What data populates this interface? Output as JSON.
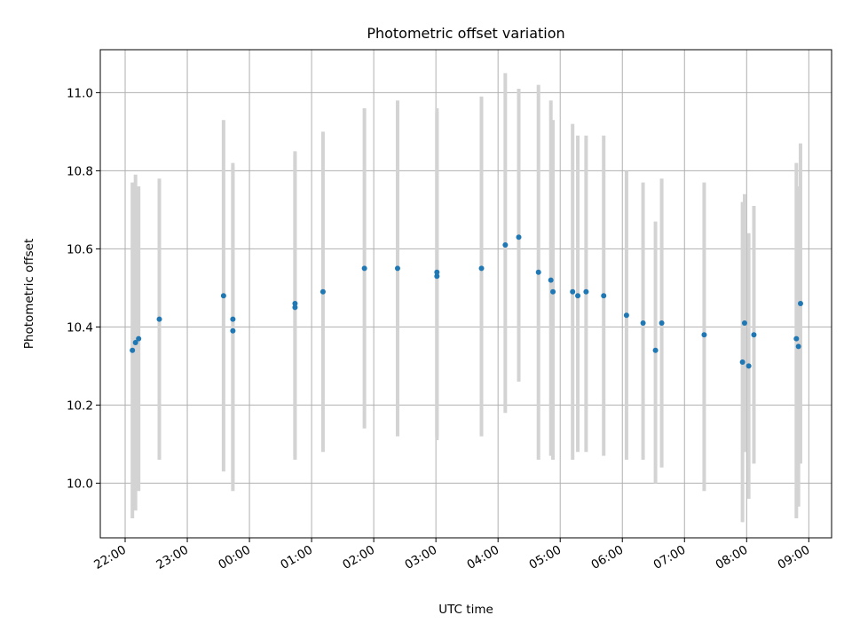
{
  "chart_data": {
    "type": "scatter",
    "title": "Photometric offset variation",
    "xlabel": "UTC time",
    "ylabel": "Photometric offset",
    "x_start_date": "2000-01-01",
    "xlim": [
      "2000-01-01 21:36",
      "2000-01-02 09:22"
    ],
    "ylim": [
      9.86,
      11.11
    ],
    "xticks": [
      "22:00",
      "23:00",
      "00:00",
      "01:00",
      "02:00",
      "03:00",
      "04:00",
      "05:00",
      "06:00",
      "07:00",
      "08:00",
      "09:00"
    ],
    "yticks": [
      "10.0",
      "10.2",
      "10.4",
      "10.6",
      "10.8",
      "11.0"
    ],
    "grid": true,
    "colors": {
      "points": "#1f77b4",
      "errorbars": "#d3d3d3",
      "grid": "#b0b0b0"
    },
    "points": [
      {
        "t": "22:07",
        "y": 10.34,
        "lo": 9.91,
        "hi": 10.77
      },
      {
        "t": "22:10",
        "y": 10.36,
        "lo": 9.93,
        "hi": 10.79
      },
      {
        "t": "22:13",
        "y": 10.37,
        "lo": 9.98,
        "hi": 10.76
      },
      {
        "t": "22:33",
        "y": 10.42,
        "lo": 10.06,
        "hi": 10.78
      },
      {
        "t": "23:35",
        "y": 10.48,
        "lo": 10.03,
        "hi": 10.93
      },
      {
        "t": "23:44",
        "y": 10.39,
        "lo": 9.98,
        "hi": 10.81
      },
      {
        "t": "23:44",
        "y": 10.42,
        "lo": 10.0,
        "hi": 10.82
      },
      {
        "t": "00:44",
        "y": 10.45,
        "lo": 10.06,
        "hi": 10.84
      },
      {
        "t": "00:44",
        "y": 10.46,
        "lo": 10.07,
        "hi": 10.85
      },
      {
        "t": "01:11",
        "y": 10.49,
        "lo": 10.08,
        "hi": 10.9
      },
      {
        "t": "01:51",
        "y": 10.55,
        "lo": 10.14,
        "hi": 10.96
      },
      {
        "t": "02:23",
        "y": 10.55,
        "lo": 10.12,
        "hi": 10.98
      },
      {
        "t": "03:01",
        "y": 10.53,
        "lo": 10.11,
        "hi": 10.95
      },
      {
        "t": "03:01",
        "y": 10.54,
        "lo": 10.12,
        "hi": 10.96
      },
      {
        "t": "03:44",
        "y": 10.55,
        "lo": 10.12,
        "hi": 10.99
      },
      {
        "t": "04:07",
        "y": 10.61,
        "lo": 10.18,
        "hi": 11.05
      },
      {
        "t": "04:20",
        "y": 10.63,
        "lo": 10.26,
        "hi": 11.01
      },
      {
        "t": "04:39",
        "y": 10.54,
        "lo": 10.06,
        "hi": 11.02
      },
      {
        "t": "04:51",
        "y": 10.52,
        "lo": 10.07,
        "hi": 10.98
      },
      {
        "t": "04:53",
        "y": 10.49,
        "lo": 10.06,
        "hi": 10.93
      },
      {
        "t": "05:12",
        "y": 10.49,
        "lo": 10.06,
        "hi": 10.92
      },
      {
        "t": "05:17",
        "y": 10.48,
        "lo": 10.08,
        "hi": 10.89
      },
      {
        "t": "05:25",
        "y": 10.49,
        "lo": 10.08,
        "hi": 10.89
      },
      {
        "t": "05:42",
        "y": 10.48,
        "lo": 10.07,
        "hi": 10.89
      },
      {
        "t": "06:04",
        "y": 10.43,
        "lo": 10.06,
        "hi": 10.8
      },
      {
        "t": "06:20",
        "y": 10.41,
        "lo": 10.06,
        "hi": 10.77
      },
      {
        "t": "06:32",
        "y": 10.34,
        "lo": 10.0,
        "hi": 10.67
      },
      {
        "t": "06:38",
        "y": 10.41,
        "lo": 10.04,
        "hi": 10.78
      },
      {
        "t": "07:19",
        "y": 10.38,
        "lo": 9.98,
        "hi": 10.77
      },
      {
        "t": "07:56",
        "y": 10.31,
        "lo": 9.9,
        "hi": 10.72
      },
      {
        "t": "07:58",
        "y": 10.41,
        "lo": 10.08,
        "hi": 10.74
      },
      {
        "t": "08:02",
        "y": 10.3,
        "lo": 9.96,
        "hi": 10.64
      },
      {
        "t": "08:07",
        "y": 10.38,
        "lo": 10.05,
        "hi": 10.71
      },
      {
        "t": "08:48",
        "y": 10.37,
        "lo": 9.91,
        "hi": 10.82
      },
      {
        "t": "08:50",
        "y": 10.35,
        "lo": 9.94,
        "hi": 10.76
      },
      {
        "t": "08:52",
        "y": 10.46,
        "lo": 10.05,
        "hi": 10.87
      }
    ]
  }
}
